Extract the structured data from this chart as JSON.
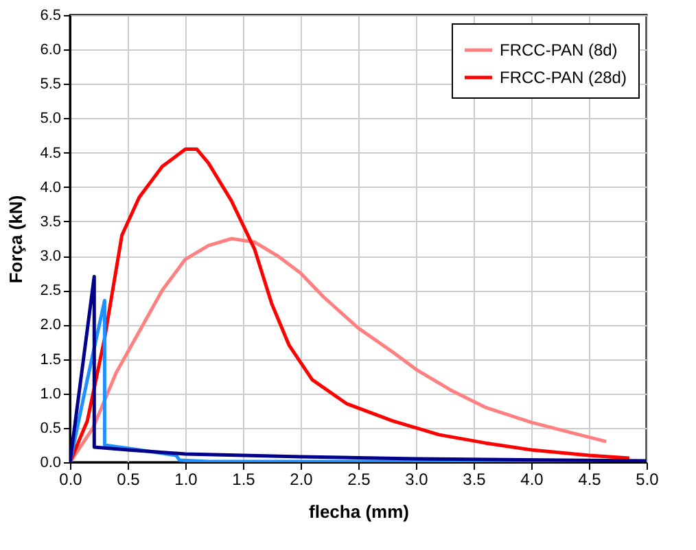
{
  "chart_data": {
    "type": "line",
    "xlabel": "flecha (mm)",
    "ylabel": "Força (kN)",
    "xlim": [
      0,
      5
    ],
    "ylim": [
      0,
      6.5
    ],
    "xticks": [
      {
        "value": 0,
        "label": "0.0"
      },
      {
        "value": 0.5,
        "label": "0.5"
      },
      {
        "value": 1,
        "label": "1.0"
      },
      {
        "value": 1.5,
        "label": "1.5"
      },
      {
        "value": 2,
        "label": "2.0"
      },
      {
        "value": 2.5,
        "label": "2.5"
      },
      {
        "value": 3,
        "label": "3.0"
      },
      {
        "value": 3.5,
        "label": "3.5"
      },
      {
        "value": 4,
        "label": "4.0"
      },
      {
        "value": 4.5,
        "label": "4.5"
      },
      {
        "value": 5,
        "label": "5.0"
      }
    ],
    "yticks": [
      {
        "value": 0,
        "label": "0.0"
      },
      {
        "value": 0.5,
        "label": "0.5"
      },
      {
        "value": 1,
        "label": "1.0"
      },
      {
        "value": 1.5,
        "label": "1.5"
      },
      {
        "value": 2,
        "label": "2.0"
      },
      {
        "value": 2.5,
        "label": "2.5"
      },
      {
        "value": 3,
        "label": "3.0"
      },
      {
        "value": 3.5,
        "label": "3.5"
      },
      {
        "value": 4,
        "label": "4.0"
      },
      {
        "value": 4.5,
        "label": "4.5"
      },
      {
        "value": 5,
        "label": "5.0"
      },
      {
        "value": 5.5,
        "label": "5.5"
      },
      {
        "value": 6,
        "label": "6.0"
      },
      {
        "value": 6.5,
        "label": "6.5"
      }
    ],
    "grid": true,
    "legend": "top right",
    "marker": "none",
    "line_style": "solid",
    "series": [
      {
        "name": "FRCC-PAN (8d)",
        "color": "#ff8080",
        "x": [
          0,
          0.2,
          0.4,
          0.6,
          0.8,
          1.0,
          1.2,
          1.4,
          1.6,
          1.8,
          2.0,
          2.2,
          2.5,
          2.8,
          3.0,
          3.3,
          3.6,
          4.0,
          4.3,
          4.65
        ],
        "values": [
          0,
          0.5,
          1.3,
          1.9,
          2.5,
          2.95,
          3.15,
          3.25,
          3.2,
          3.0,
          2.75,
          2.4,
          1.95,
          1.6,
          1.35,
          1.05,
          0.8,
          0.58,
          0.45,
          0.3
        ]
      },
      {
        "name": "FRCC-PAN (28d)",
        "color": "#ff0000",
        "x": [
          0,
          0.15,
          0.3,
          0.45,
          0.6,
          0.8,
          1.0,
          1.1,
          1.2,
          1.4,
          1.6,
          1.75,
          1.9,
          2.1,
          2.4,
          2.8,
          3.2,
          3.6,
          4.0,
          4.5,
          4.85
        ],
        "values": [
          0,
          0.6,
          1.8,
          3.3,
          3.85,
          4.3,
          4.55,
          4.55,
          4.35,
          3.8,
          3.1,
          2.3,
          1.7,
          1.2,
          0.85,
          0.6,
          0.4,
          0.28,
          0.18,
          0.1,
          0.06
        ]
      },
      {
        "color": "#1e90ff",
        "x": [
          0,
          0.15,
          0.3,
          0.3,
          0.6,
          0.92,
          0.95,
          1.2,
          5
        ],
        "values": [
          0,
          1.2,
          2.35,
          0.25,
          0.18,
          0.1,
          0.03,
          0.01,
          0.01
        ]
      },
      {
        "color": "#00008b",
        "x": [
          0,
          0.21,
          0.21,
          0.5,
          1,
          2,
          3,
          5
        ],
        "values": [
          0,
          2.7,
          0.22,
          0.18,
          0.12,
          0.08,
          0.05,
          0.02
        ]
      }
    ]
  }
}
